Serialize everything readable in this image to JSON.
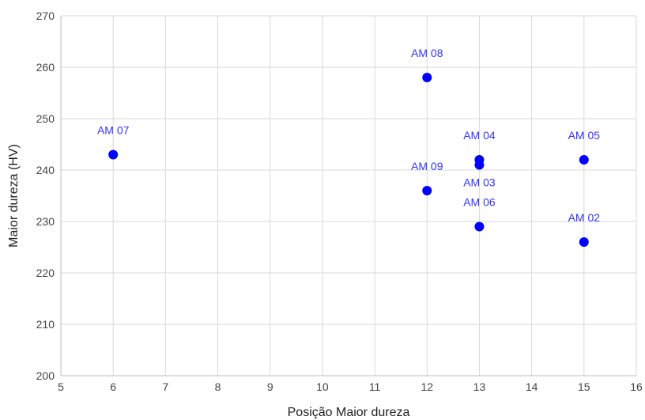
{
  "chart_data": {
    "type": "scatter",
    "xlabel": "Posição Maior dureza",
    "ylabel": "Maior dureza (HV)",
    "xlim": [
      5,
      16
    ],
    "ylim": [
      200,
      270
    ],
    "xticks": [
      5,
      6,
      7,
      8,
      9,
      10,
      11,
      12,
      13,
      14,
      15,
      16
    ],
    "yticks": [
      200,
      210,
      220,
      230,
      240,
      250,
      260,
      270
    ],
    "grid": true,
    "series": [
      {
        "color": "#0000ff",
        "points": [
          {
            "label": "AM 07",
            "x": 6,
            "y": 243
          },
          {
            "label": "AM 08",
            "x": 12,
            "y": 258
          },
          {
            "label": "AM 09",
            "x": 12,
            "y": 236
          },
          {
            "label": "AM 04",
            "x": 13,
            "y": 242
          },
          {
            "label": "AM 03",
            "x": 13,
            "y": 241
          },
          {
            "label": "AM 06",
            "x": 13,
            "y": 229
          },
          {
            "label": "AM 05",
            "x": 15,
            "y": 242
          },
          {
            "label": "AM 02",
            "x": 15,
            "y": 226
          }
        ]
      }
    ]
  }
}
